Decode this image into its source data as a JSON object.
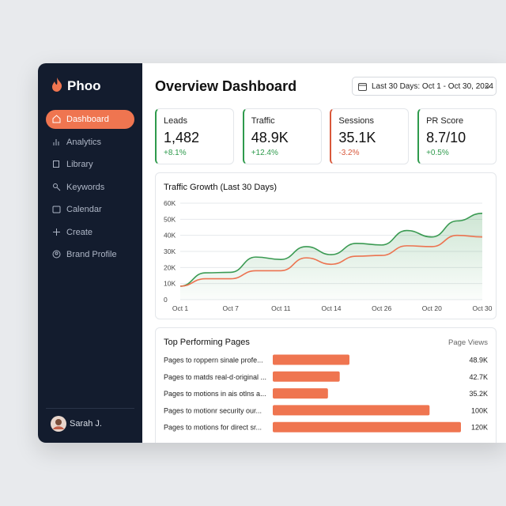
{
  "sidebar": {
    "brand": "Phoo",
    "nav": [
      "Dashboard",
      "Analytics",
      "Library",
      "Keywords",
      "Calendar",
      "Create",
      "Brand Profile"
    ],
    "active_nav": 0,
    "user": "Sarah J."
  },
  "header": {
    "title": "Overview Dashboard",
    "date_range": "Last 30 Days: Oct 1 - Oct 30, 2024"
  },
  "kpis": [
    {
      "label": "Leads",
      "value": "1,482",
      "change": "+8.1%"
    },
    {
      "label": "Traffic",
      "value": "48.9K",
      "change": "+12.4%"
    },
    {
      "label": "Sessions",
      "value": "35.1K",
      "change": "-3.2%"
    },
    {
      "label": "PR Score",
      "value": "8.7/10",
      "change": "+0.5%"
    }
  ],
  "traffic_chart": {
    "type": "line",
    "title": "Traffic Growth (Last 30 Days)",
    "categories": [
      "Oct 1",
      null,
      "Oct 7",
      null,
      "Oct 11",
      null,
      "Oct 14",
      null,
      "Oct 26",
      null,
      "Oct 20",
      null,
      "Oct 30"
    ],
    "series": [
      {
        "color": "#3a9a52",
        "area": true,
        "values": [
          8400,
          16700,
          17000,
          26500,
          25000,
          33000,
          28000,
          35000,
          34000,
          43000,
          39000,
          49000,
          53700
        ]
      },
      {
        "color": "#ec7350",
        "values": [
          8400,
          13000,
          13000,
          18000,
          18000,
          26000,
          22000,
          27000,
          27500,
          33500,
          33000,
          40000,
          39000
        ]
      }
    ],
    "ylim": [
      0,
      60000
    ],
    "yticks": [
      0,
      {
        "value": 10000,
        "label": "10K"
      },
      {
        "value": 20000,
        "label": "20K"
      },
      {
        "value": 30000,
        "label": "30K"
      },
      {
        "value": 40000,
        "label": "40K"
      },
      {
        "value": 50000,
        "label": "50K"
      },
      {
        "value": 60000,
        "label": "60K"
      }
    ],
    "grid": true
  },
  "pages_chart": {
    "type": "bar",
    "title": "Top Performing Pages",
    "value_title": "Page Views",
    "categories": [
      "Pages to roppern sinale profe...",
      "Pages to matds real-d·original ...",
      "Pages to motions in ais otlns a...",
      "Pages to motionr security our...",
      "Pages to motions for direct sr..."
    ],
    "values": [
      48900,
      42700,
      35200,
      100000,
      120000
    ],
    "value_labels": [
      "48.9K",
      "42.7K",
      "35.2K",
      "100K",
      "120K"
    ],
    "color": "#ef7550"
  }
}
